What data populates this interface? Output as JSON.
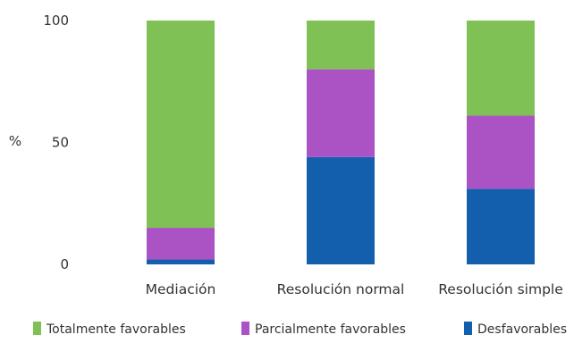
{
  "chart_data": {
    "type": "bar",
    "stacked": true,
    "categories": [
      "Mediación",
      "Resolución normal",
      "Resolución simple"
    ],
    "series": [
      {
        "name": "Desfavorables",
        "color": "#135fae",
        "values": [
          2,
          44,
          31
        ]
      },
      {
        "name": "Parcialmente favorables",
        "color": "#ab53c4",
        "values": [
          13,
          36,
          30
        ]
      },
      {
        "name": "Totalmente favorables",
        "color": "#80c155",
        "values": [
          85,
          20,
          39
        ]
      }
    ],
    "legend_order": [
      "Totalmente favorables",
      "Parcialmente favorables",
      "Desfavorables"
    ],
    "ylabel": "%",
    "ylim": [
      0,
      100
    ],
    "yticks": [
      0,
      50,
      100
    ],
    "grid": false,
    "legend_position": "bottom"
  }
}
